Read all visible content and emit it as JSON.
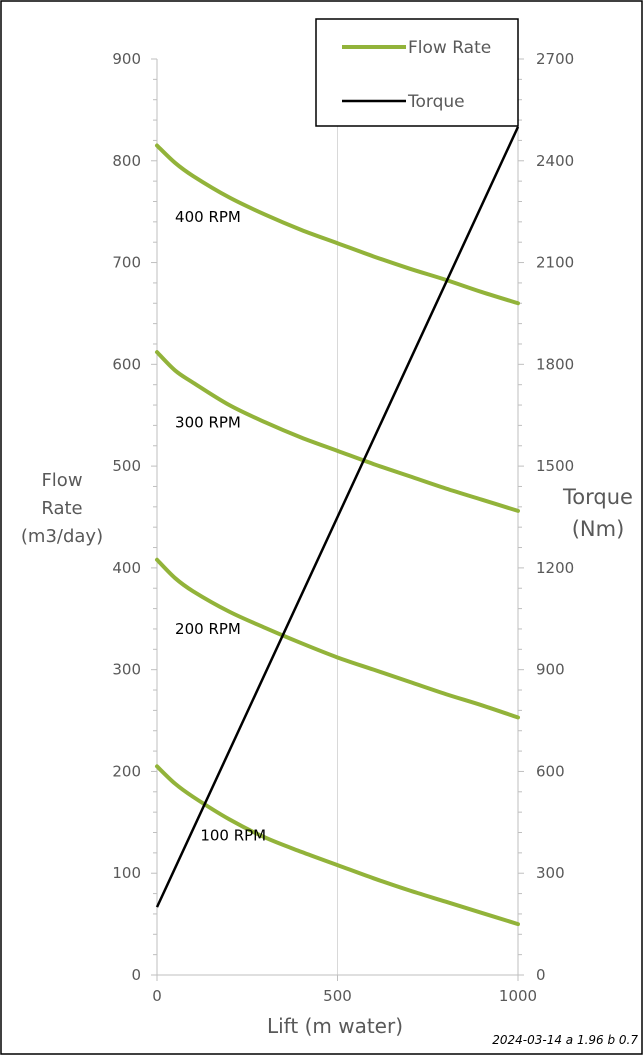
{
  "chart_data": {
    "type": "line",
    "x_label": "Lift (m water)",
    "y_left_label": [
      "Flow",
      "Rate",
      "(m3/day)"
    ],
    "y_right_label": [
      "Torque",
      "(Nm)"
    ],
    "x_ticks": [
      "0",
      "500",
      "1000"
    ],
    "x_tick_values": [
      0,
      500,
      1000
    ],
    "y_left_ticks": [
      "0",
      "100",
      "200",
      "300",
      "400",
      "500",
      "600",
      "700",
      "800",
      "900"
    ],
    "y_left_tick_values": [
      0,
      100,
      200,
      300,
      400,
      500,
      600,
      700,
      800,
      900
    ],
    "y_right_ticks": [
      "0",
      "300",
      "600",
      "900",
      "1200",
      "1500",
      "1800",
      "2100",
      "2400",
      "2700"
    ],
    "y_right_tick_values": [
      0,
      300,
      600,
      900,
      1200,
      1500,
      1800,
      2100,
      2400,
      2700
    ],
    "xlim": [
      0,
      1000
    ],
    "ylim_left": [
      0,
      900
    ],
    "ylim_right": [
      0,
      2700
    ],
    "grid": "vertical",
    "legend": [
      {
        "label": "Flow Rate",
        "color": "#92b33a"
      },
      {
        "label": "Torque",
        "color": "#000000"
      }
    ],
    "legend_position": "top-right",
    "flow_series_color": "#92b33a",
    "torque_color": "#000000",
    "x": [
      0,
      50,
      100,
      200,
      300,
      400,
      500,
      600,
      700,
      800,
      900,
      1000
    ],
    "series": [
      {
        "label": "100 RPM",
        "axis": "left",
        "values": [
          205,
          188,
          175,
          153,
          135,
          121,
          108,
          95,
          83,
          72,
          61,
          50
        ]
      },
      {
        "label": "200 RPM",
        "axis": "left",
        "values": [
          408,
          390,
          377,
          357,
          341,
          326,
          312,
          300,
          288,
          276,
          265,
          253
        ]
      },
      {
        "label": "300 RPM",
        "axis": "left",
        "values": [
          612,
          594,
          582,
          560,
          543,
          528,
          515,
          502,
          490,
          478,
          467,
          456
        ]
      },
      {
        "label": "400 RPM",
        "axis": "left",
        "values": [
          815,
          798,
          785,
          764,
          747,
          732,
          719,
          706,
          694,
          683,
          671,
          660
        ]
      }
    ],
    "torque": {
      "label": "Torque",
      "axis": "right",
      "x": [
        0,
        1000
      ],
      "values": [
        200,
        2500
      ]
    },
    "annotations": [
      {
        "text": "400 RPM",
        "x": 50,
        "y": 740
      },
      {
        "text": "300 RPM",
        "x": 50,
        "y": 538
      },
      {
        "text": "200 RPM",
        "x": 50,
        "y": 335
      },
      {
        "text": "100 RPM",
        "x": 120,
        "y": 132
      }
    ]
  },
  "footer": {
    "stamp": "2024-03-14 a 1.96 b 0.7"
  }
}
